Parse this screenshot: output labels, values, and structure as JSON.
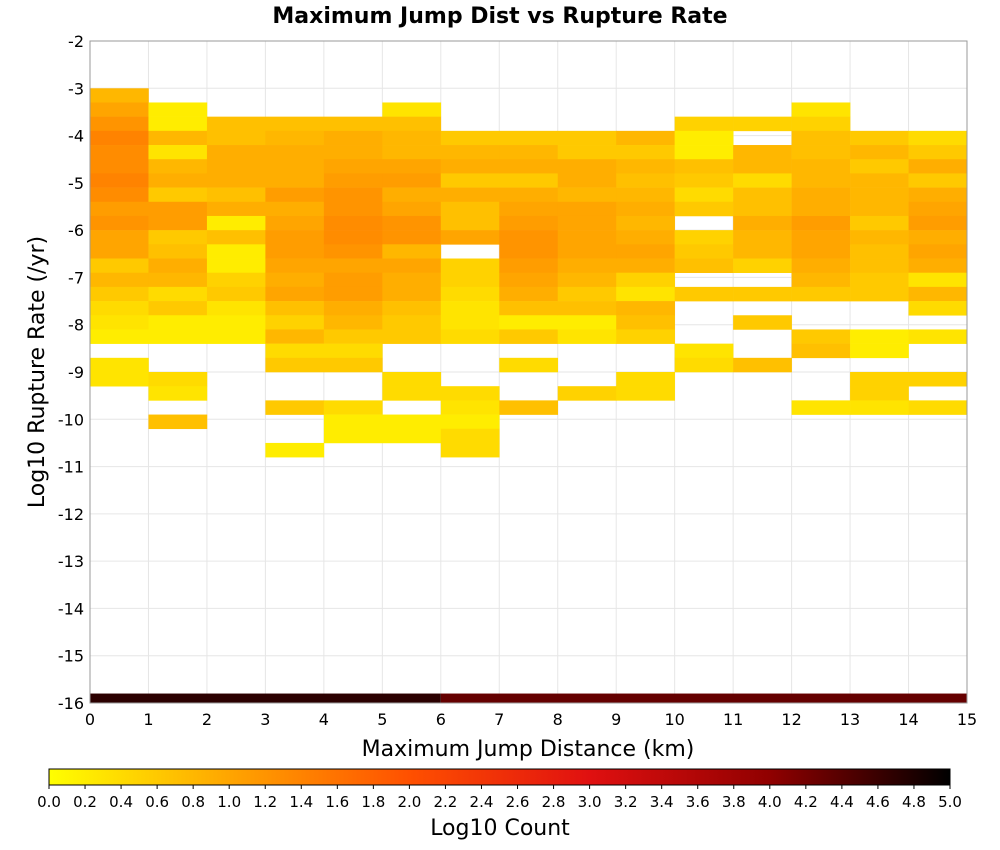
{
  "chart_data": {
    "type": "heatmap",
    "title": "Maximum Jump Dist vs Rupture Rate",
    "xlabel": "Maximum Jump Distance (km)",
    "ylabel": "Log10 Rupture Rate (/yr)",
    "xlim": [
      0,
      15
    ],
    "ylim": [
      -16,
      -2
    ],
    "x_ticks": [
      "0",
      "1",
      "2",
      "3",
      "4",
      "5",
      "6",
      "7",
      "8",
      "9",
      "10",
      "11",
      "12",
      "13",
      "14",
      "15"
    ],
    "y_ticks": [
      "-2",
      "-3",
      "-4",
      "-5",
      "-6",
      "-7",
      "-8",
      "-9",
      "-10",
      "-11",
      "-12",
      "-13",
      "-14",
      "-15",
      "-16"
    ],
    "grid": true,
    "x_bin_width": 1,
    "y_bin_height": 0.3,
    "colorbar": {
      "label": "Log10 Count",
      "range": [
        0.0,
        5.0
      ],
      "ticks": [
        "0.0",
        "0.2",
        "0.4",
        "0.6",
        "0.8",
        "1.0",
        "1.2",
        "1.4",
        "1.6",
        "1.8",
        "2.0",
        "2.2",
        "2.4",
        "2.6",
        "2.8",
        "3.0",
        "3.2",
        "3.4",
        "3.6",
        "3.8",
        "4.0",
        "4.2",
        "4.4",
        "4.6",
        "4.8",
        "5.0"
      ],
      "colormap": [
        "#ffff00",
        "#ffa500",
        "#ff5000",
        "#e01010",
        "#900000",
        "#000000"
      ]
    },
    "columns": [
      {
        "x": 0,
        "cells": [
          [
            -3.0,
            0.8
          ],
          [
            -3.3,
            1.0
          ],
          [
            -3.6,
            1.2
          ],
          [
            -3.9,
            1.4
          ],
          [
            -4.2,
            1.3
          ],
          [
            -4.5,
            1.3
          ],
          [
            -4.8,
            1.4
          ],
          [
            -5.1,
            1.3
          ],
          [
            -5.4,
            1.1
          ],
          [
            -5.7,
            1.2
          ],
          [
            -6.0,
            1.0
          ],
          [
            -6.3,
            1.0
          ],
          [
            -6.6,
            0.6
          ],
          [
            -6.9,
            0.8
          ],
          [
            -7.2,
            0.6
          ],
          [
            -7.5,
            0.4
          ],
          [
            -7.8,
            0.3
          ],
          [
            -8.1,
            0.2
          ],
          [
            -8.7,
            0.3
          ],
          [
            -9.0,
            0.3
          ]
        ]
      },
      {
        "x": 1,
        "cells": [
          [
            -3.3,
            0.2
          ],
          [
            -3.6,
            0.2
          ],
          [
            -3.9,
            0.8
          ],
          [
            -4.2,
            0.3
          ],
          [
            -4.5,
            0.8
          ],
          [
            -4.8,
            0.9
          ],
          [
            -5.1,
            0.6
          ],
          [
            -5.4,
            1.1
          ],
          [
            -5.7,
            1.1
          ],
          [
            -6.0,
            0.6
          ],
          [
            -6.3,
            0.7
          ],
          [
            -6.6,
            0.9
          ],
          [
            -6.9,
            0.8
          ],
          [
            -7.2,
            0.4
          ],
          [
            -7.5,
            0.6
          ],
          [
            -7.8,
            0.2
          ],
          [
            -8.1,
            0.2
          ],
          [
            -9.0,
            0.4
          ],
          [
            -9.3,
            0.3
          ],
          [
            -9.9,
            0.7
          ]
        ]
      },
      {
        "x": 2,
        "cells": [
          [
            -3.6,
            0.7
          ],
          [
            -3.9,
            0.7
          ],
          [
            -4.2,
            0.9
          ],
          [
            -4.5,
            0.9
          ],
          [
            -4.8,
            0.9
          ],
          [
            -5.1,
            0.7
          ],
          [
            -5.4,
            0.9
          ],
          [
            -5.7,
            0.2
          ],
          [
            -6.0,
            0.7
          ],
          [
            -6.3,
            0.2
          ],
          [
            -6.6,
            0.2
          ],
          [
            -6.9,
            0.5
          ],
          [
            -7.2,
            0.6
          ],
          [
            -7.5,
            0.3
          ],
          [
            -7.8,
            0.2
          ],
          [
            -8.1,
            0.2
          ]
        ]
      },
      {
        "x": 3,
        "cells": [
          [
            -3.6,
            0.7
          ],
          [
            -3.9,
            0.8
          ],
          [
            -4.2,
            0.9
          ],
          [
            -4.5,
            0.9
          ],
          [
            -4.8,
            0.9
          ],
          [
            -5.1,
            1.1
          ],
          [
            -5.4,
            0.9
          ],
          [
            -5.7,
            1.0
          ],
          [
            -6.0,
            1.1
          ],
          [
            -6.3,
            1.1
          ],
          [
            -6.6,
            1.0
          ],
          [
            -6.9,
            0.9
          ],
          [
            -7.2,
            1.0
          ],
          [
            -7.5,
            0.7
          ],
          [
            -7.8,
            0.5
          ],
          [
            -8.1,
            0.8
          ],
          [
            -8.4,
            0.4
          ],
          [
            -8.7,
            0.6
          ],
          [
            -9.6,
            0.6
          ],
          [
            -10.5,
            0.2
          ]
        ]
      },
      {
        "x": 4,
        "cells": [
          [
            -3.6,
            0.7
          ],
          [
            -3.9,
            0.9
          ],
          [
            -4.2,
            0.9
          ],
          [
            -4.5,
            1.0
          ],
          [
            -4.8,
            1.1
          ],
          [
            -5.1,
            1.2
          ],
          [
            -5.4,
            1.2
          ],
          [
            -5.7,
            1.3
          ],
          [
            -6.0,
            1.3
          ],
          [
            -6.3,
            1.2
          ],
          [
            -6.6,
            1.0
          ],
          [
            -6.9,
            1.1
          ],
          [
            -7.2,
            1.1
          ],
          [
            -7.5,
            0.9
          ],
          [
            -7.8,
            0.8
          ],
          [
            -8.1,
            0.6
          ],
          [
            -8.4,
            0.4
          ],
          [
            -8.7,
            0.6
          ],
          [
            -9.6,
            0.4
          ],
          [
            -9.9,
            0.2
          ],
          [
            -10.2,
            0.2
          ]
        ]
      },
      {
        "x": 5,
        "cells": [
          [
            -3.3,
            0.3
          ],
          [
            -3.6,
            0.7
          ],
          [
            -3.9,
            0.8
          ],
          [
            -4.2,
            0.8
          ],
          [
            -4.5,
            1.0
          ],
          [
            -4.8,
            1.1
          ],
          [
            -5.1,
            0.9
          ],
          [
            -5.4,
            1.0
          ],
          [
            -5.7,
            1.2
          ],
          [
            -6.0,
            1.2
          ],
          [
            -6.3,
            0.8
          ],
          [
            -6.6,
            1.0
          ],
          [
            -6.9,
            0.9
          ],
          [
            -7.2,
            0.9
          ],
          [
            -7.5,
            0.7
          ],
          [
            -7.8,
            0.6
          ],
          [
            -8.1,
            0.6
          ],
          [
            -9.0,
            0.4
          ],
          [
            -9.3,
            0.4
          ],
          [
            -9.9,
            0.2
          ],
          [
            -10.2,
            0.2
          ]
        ]
      },
      {
        "x": 6,
        "cells": [
          [
            -3.9,
            0.6
          ],
          [
            -4.2,
            0.8
          ],
          [
            -4.5,
            0.9
          ],
          [
            -4.8,
            0.6
          ],
          [
            -5.1,
            0.9
          ],
          [
            -5.4,
            0.7
          ],
          [
            -5.7,
            0.7
          ],
          [
            -6.0,
            1.0
          ],
          [
            -6.6,
            0.5
          ],
          [
            -6.9,
            0.5
          ],
          [
            -7.2,
            0.4
          ],
          [
            -7.5,
            0.3
          ],
          [
            -7.8,
            0.3
          ],
          [
            -8.1,
            0.4
          ],
          [
            -9.3,
            0.4
          ],
          [
            -9.6,
            0.3
          ],
          [
            -9.9,
            0.2
          ],
          [
            -10.2,
            0.4
          ],
          [
            -10.5,
            0.4
          ]
        ]
      },
      {
        "x": 7,
        "cells": [
          [
            -3.9,
            0.6
          ],
          [
            -4.2,
            0.8
          ],
          [
            -4.5,
            0.9
          ],
          [
            -4.8,
            0.6
          ],
          [
            -5.1,
            0.9
          ],
          [
            -5.4,
            1.0
          ],
          [
            -5.7,
            1.1
          ],
          [
            -6.0,
            1.2
          ],
          [
            -6.3,
            1.2
          ],
          [
            -6.6,
            1.1
          ],
          [
            -6.9,
            1.0
          ],
          [
            -7.2,
            0.9
          ],
          [
            -7.5,
            0.7
          ],
          [
            -7.8,
            0.2
          ],
          [
            -8.1,
            0.6
          ],
          [
            -8.7,
            0.4
          ],
          [
            -9.6,
            0.7
          ]
        ]
      },
      {
        "x": 8,
        "cells": [
          [
            -3.9,
            0.6
          ],
          [
            -4.2,
            0.6
          ],
          [
            -4.5,
            0.9
          ],
          [
            -4.8,
            0.9
          ],
          [
            -5.1,
            0.8
          ],
          [
            -5.4,
            1.0
          ],
          [
            -5.7,
            1.0
          ],
          [
            -6.0,
            1.0
          ],
          [
            -6.3,
            1.0
          ],
          [
            -6.6,
            0.9
          ],
          [
            -6.9,
            0.8
          ],
          [
            -7.2,
            0.6
          ],
          [
            -7.5,
            0.7
          ],
          [
            -7.8,
            0.2
          ],
          [
            -8.1,
            0.3
          ],
          [
            -9.3,
            0.5
          ]
        ]
      },
      {
        "x": 9,
        "cells": [
          [
            -3.9,
            0.8
          ],
          [
            -4.2,
            0.6
          ],
          [
            -4.5,
            0.8
          ],
          [
            -4.8,
            0.7
          ],
          [
            -5.1,
            0.8
          ],
          [
            -5.4,
            0.9
          ],
          [
            -5.7,
            0.8
          ],
          [
            -6.0,
            0.9
          ],
          [
            -6.3,
            1.0
          ],
          [
            -6.6,
            0.9
          ],
          [
            -6.9,
            0.5
          ],
          [
            -7.2,
            0.3
          ],
          [
            -7.5,
            0.8
          ],
          [
            -7.8,
            0.7
          ],
          [
            -8.1,
            0.5
          ],
          [
            -9.0,
            0.4
          ],
          [
            -9.3,
            0.4
          ]
        ]
      },
      {
        "x": 10,
        "cells": [
          [
            -3.6,
            0.5
          ],
          [
            -3.9,
            0.2
          ],
          [
            -4.2,
            0.2
          ],
          [
            -4.5,
            0.7
          ],
          [
            -4.8,
            0.6
          ],
          [
            -5.1,
            0.4
          ],
          [
            -5.4,
            0.6
          ],
          [
            -6.0,
            0.5
          ],
          [
            -6.3,
            0.6
          ],
          [
            -6.6,
            0.7
          ],
          [
            -7.2,
            0.6
          ],
          [
            -8.4,
            0.3
          ],
          [
            -8.7,
            0.4
          ]
        ]
      },
      {
        "x": 11,
        "cells": [
          [
            -3.6,
            0.5
          ],
          [
            -4.2,
            0.8
          ],
          [
            -4.5,
            0.8
          ],
          [
            -4.8,
            0.4
          ],
          [
            -5.1,
            0.7
          ],
          [
            -5.4,
            0.7
          ],
          [
            -5.7,
            0.9
          ],
          [
            -6.0,
            0.8
          ],
          [
            -6.3,
            0.8
          ],
          [
            -6.6,
            0.5
          ],
          [
            -7.2,
            0.6
          ],
          [
            -7.8,
            0.6
          ],
          [
            -8.7,
            0.7
          ]
        ]
      },
      {
        "x": 12,
        "cells": [
          [
            -3.3,
            0.3
          ],
          [
            -3.6,
            0.5
          ],
          [
            -3.9,
            0.7
          ],
          [
            -4.2,
            0.7
          ],
          [
            -4.5,
            0.8
          ],
          [
            -4.8,
            0.8
          ],
          [
            -5.1,
            0.9
          ],
          [
            -5.4,
            0.9
          ],
          [
            -5.7,
            1.1
          ],
          [
            -6.0,
            1.0
          ],
          [
            -6.3,
            1.0
          ],
          [
            -6.6,
            0.9
          ],
          [
            -6.9,
            0.8
          ],
          [
            -7.2,
            0.6
          ],
          [
            -8.1,
            0.6
          ],
          [
            -8.4,
            0.7
          ],
          [
            -9.6,
            0.3
          ]
        ]
      },
      {
        "x": 13,
        "cells": [
          [
            -3.9,
            0.6
          ],
          [
            -4.2,
            0.8
          ],
          [
            -4.5,
            0.6
          ],
          [
            -4.8,
            0.8
          ],
          [
            -5.1,
            0.8
          ],
          [
            -5.4,
            0.8
          ],
          [
            -5.7,
            0.6
          ],
          [
            -6.0,
            0.8
          ],
          [
            -6.3,
            0.7
          ],
          [
            -6.6,
            0.7
          ],
          [
            -6.9,
            0.6
          ],
          [
            -7.2,
            0.6
          ],
          [
            -8.1,
            0.2
          ],
          [
            -8.4,
            0.2
          ],
          [
            -9.0,
            0.5
          ],
          [
            -9.3,
            0.5
          ],
          [
            -9.6,
            0.3
          ]
        ]
      },
      {
        "x": 14,
        "cells": [
          [
            -3.9,
            0.4
          ],
          [
            -4.2,
            0.6
          ],
          [
            -4.5,
            0.9
          ],
          [
            -4.8,
            0.6
          ],
          [
            -5.1,
            0.9
          ],
          [
            -5.4,
            1.0
          ],
          [
            -5.7,
            1.1
          ],
          [
            -6.0,
            0.9
          ],
          [
            -6.3,
            1.0
          ],
          [
            -6.6,
            0.9
          ],
          [
            -6.9,
            0.3
          ],
          [
            -7.2,
            0.8
          ],
          [
            -7.5,
            0.4
          ],
          [
            -8.1,
            0.3
          ],
          [
            -9.0,
            0.5
          ],
          [
            -9.6,
            0.4
          ]
        ]
      }
    ],
    "bottom_strip": [
      {
        "x0": 0,
        "x1": 6,
        "value": 4.7
      },
      {
        "x0": 6,
        "x1": 15,
        "value": 4.3
      }
    ]
  }
}
